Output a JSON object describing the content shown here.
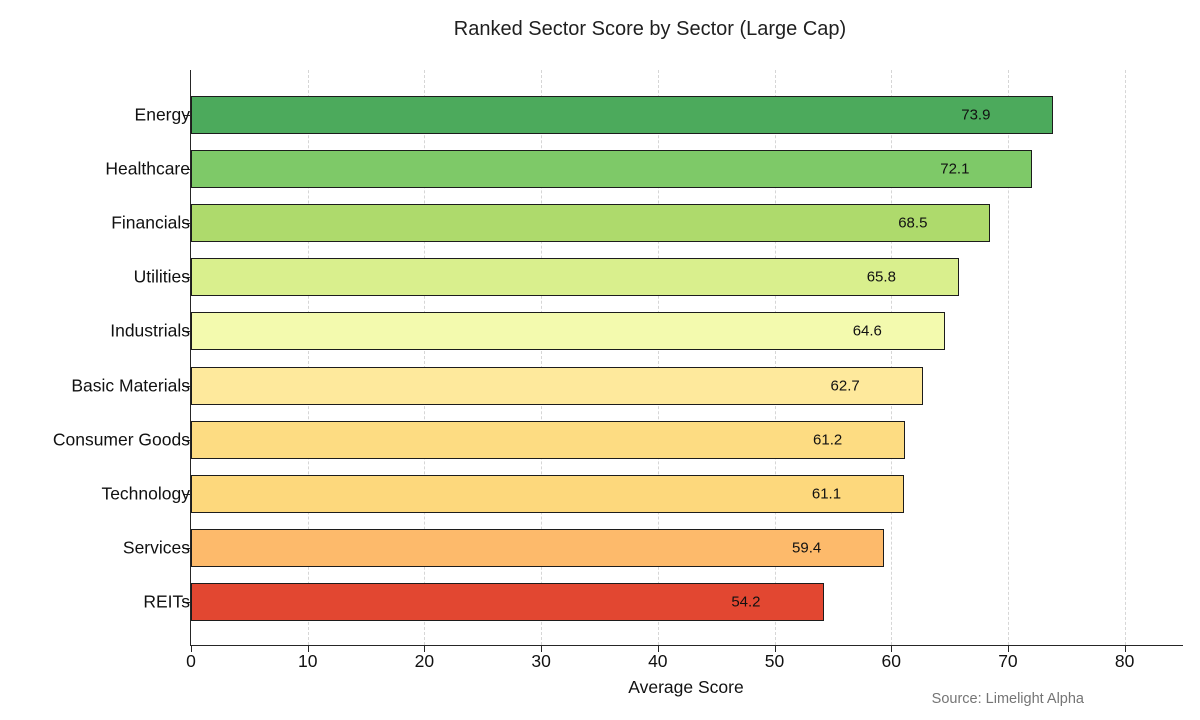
{
  "source": "Source: Limelight Alpha",
  "chart_data": {
    "type": "bar",
    "orientation": "horizontal",
    "title": "Ranked Sector Score by Sector (Large Cap)",
    "xlabel": "Average Score",
    "ylabel": "",
    "xlim": [
      0,
      85
    ],
    "xticks": [
      0,
      10,
      20,
      30,
      40,
      50,
      60,
      70,
      80
    ],
    "grid": "vertical-dashed",
    "legend": "none",
    "categories": [
      "Energy",
      "Healthcare",
      "Financials",
      "Utilities",
      "Industrials",
      "Basic Materials",
      "Consumer Goods",
      "Technology",
      "Services",
      "REITs"
    ],
    "values": [
      73.9,
      72.1,
      68.5,
      65.8,
      64.6,
      62.7,
      61.2,
      61.1,
      59.4,
      54.2
    ],
    "value_labels": [
      "73.9",
      "72.1",
      "68.5",
      "65.8",
      "64.6",
      "62.7",
      "61.2",
      "61.1",
      "59.4",
      "54.2"
    ],
    "bar_colors": [
      "#4caa5c",
      "#7ec968",
      "#aeda6c",
      "#d9ef8d",
      "#f3faae",
      "#fee99c",
      "#fddc82",
      "#fdd87c",
      "#fdba6b",
      "#e24731"
    ],
    "colors": {
      "bar_edge": "#1c1c1c",
      "axis_spine": "#262626",
      "gridline": "#d6d6d6",
      "text": "#111111",
      "source_text": "#757575"
    }
  }
}
